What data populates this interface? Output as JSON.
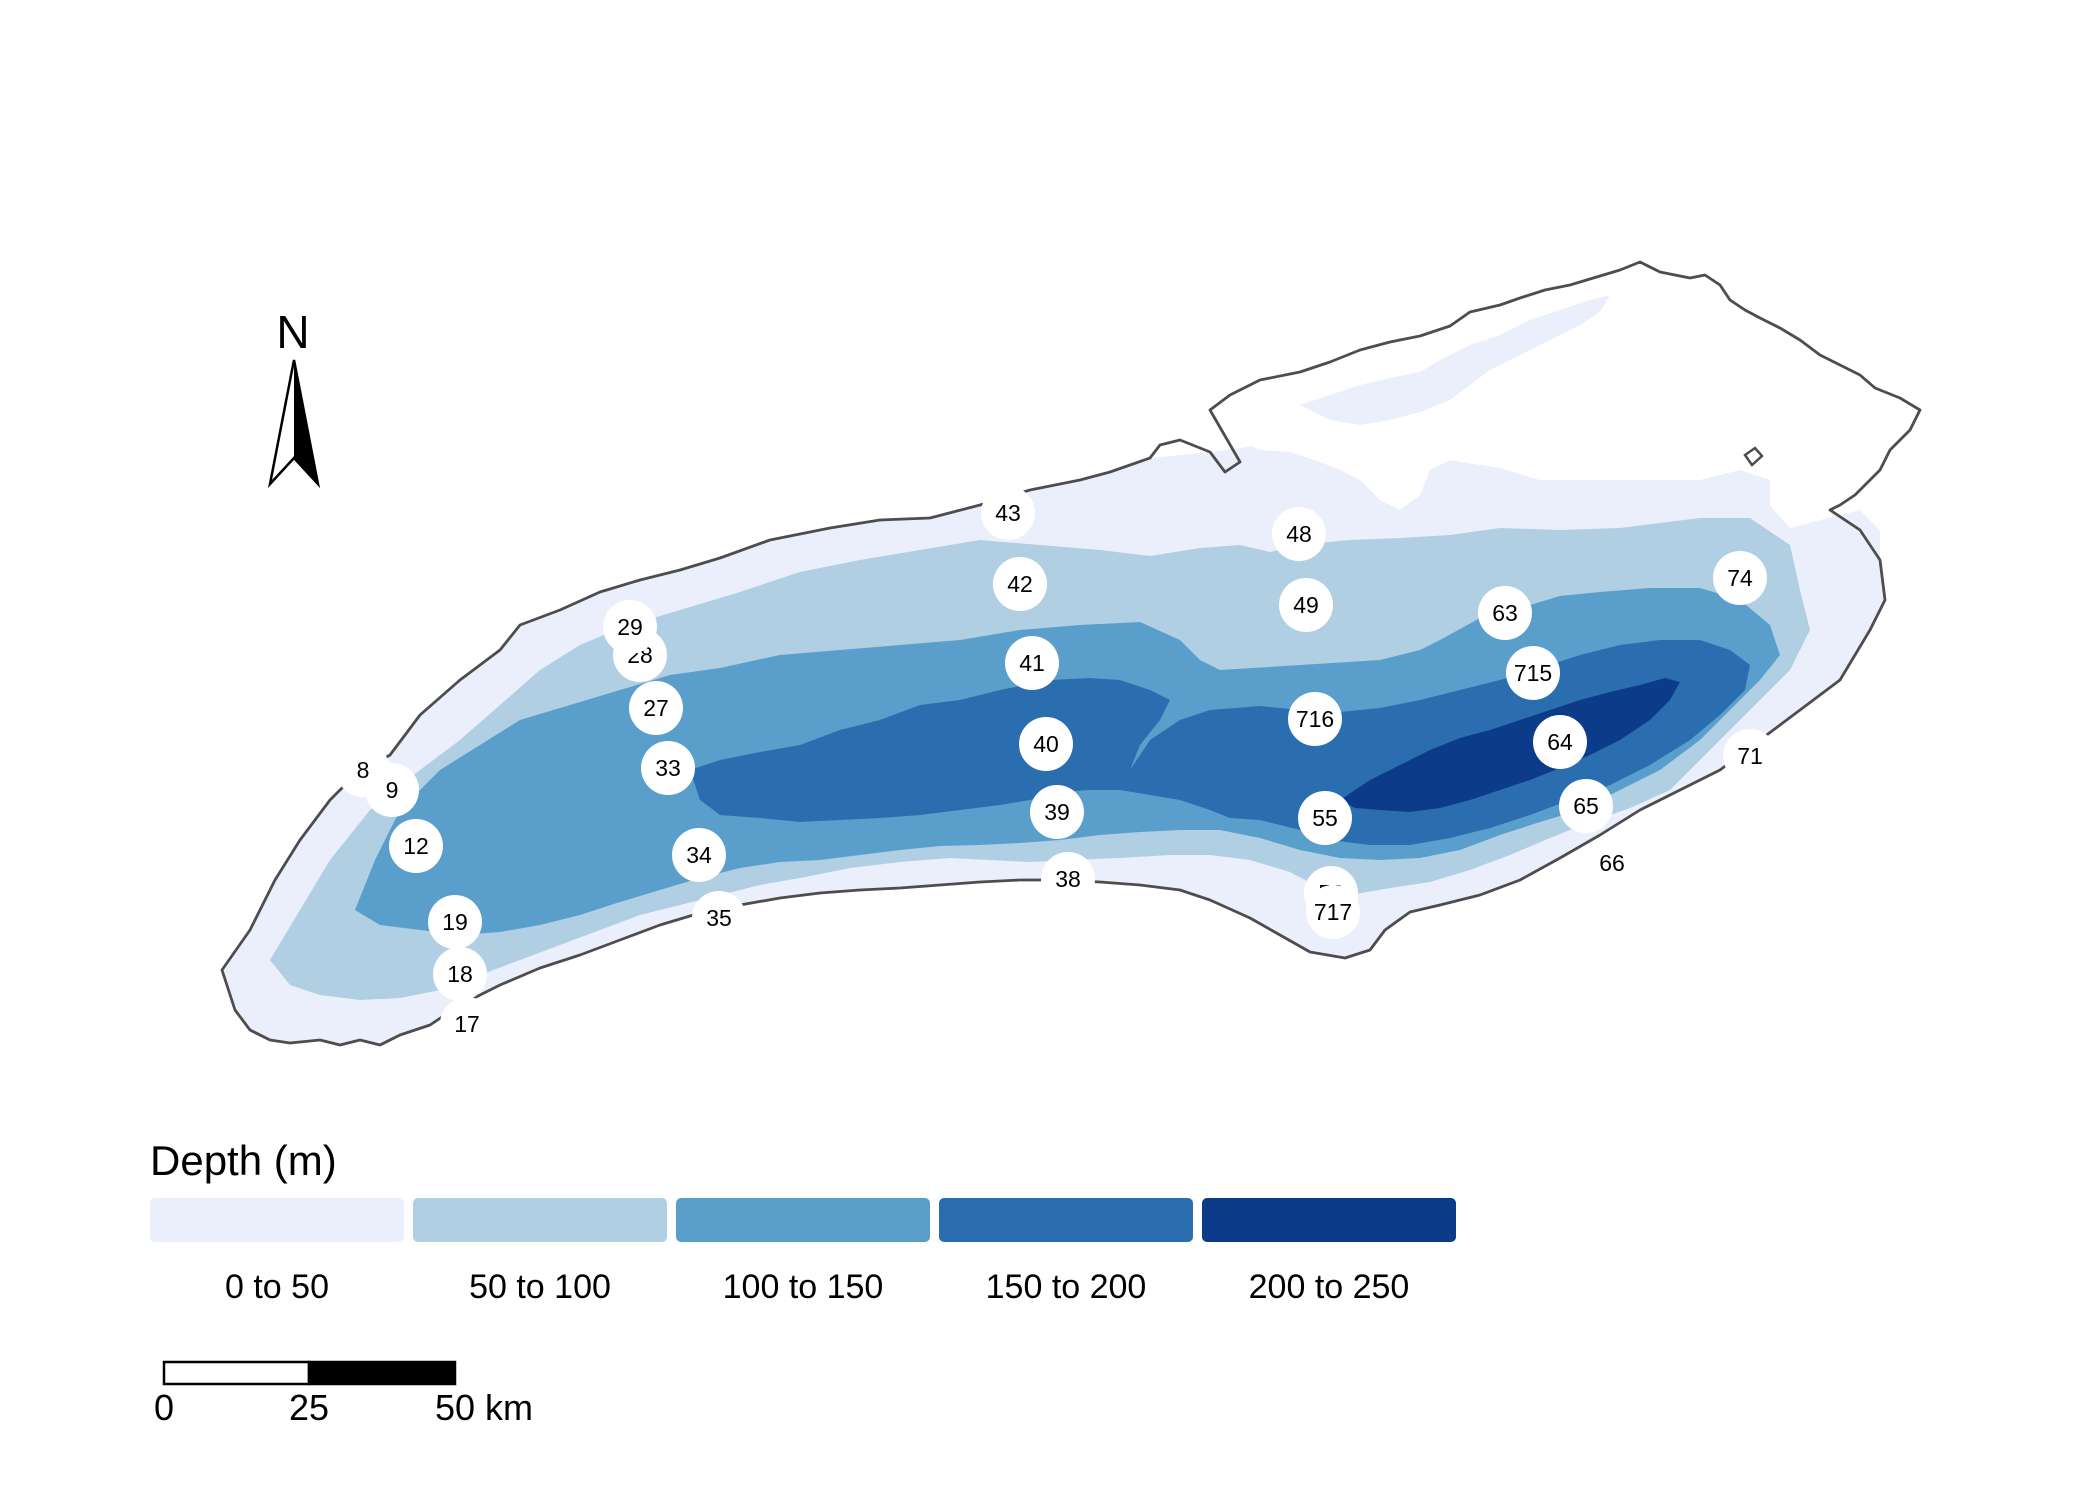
{
  "north_arrow": {
    "label": "N"
  },
  "legend": {
    "title": "Depth (m)",
    "classes": [
      {
        "label": "0 to 50",
        "color": "#eaeffb"
      },
      {
        "label": "50 to 100",
        "color": "#b0cfe3"
      },
      {
        "label": "100 to 150",
        "color": "#5a9fcb"
      },
      {
        "label": "150 to 200",
        "color": "#2a6eb0"
      },
      {
        "label": "200 to 250",
        "color": "#0c3c89"
      }
    ]
  },
  "scale_bar": {
    "labels": [
      "0",
      "25",
      "50 km"
    ]
  },
  "stations": [
    "8",
    "9",
    "12",
    "17",
    "18",
    "19",
    "27",
    "28",
    "29",
    "33",
    "34",
    "35",
    "38",
    "39",
    "40",
    "41",
    "42",
    "43",
    "48",
    "49",
    "55",
    "58",
    "63",
    "64",
    "65",
    "66",
    "71",
    "74",
    "715",
    "716",
    "717"
  ],
  "colors": {
    "shoreline": "#4d4d4d",
    "station_fill": "#ffffff",
    "text": "#000000"
  }
}
